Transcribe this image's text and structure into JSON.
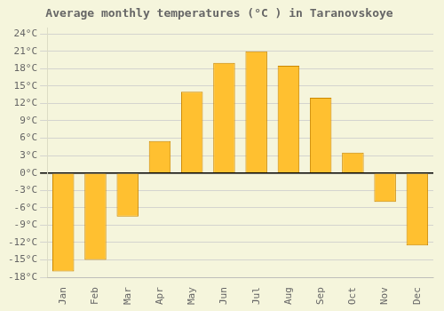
{
  "chart_data": {
    "type": "bar",
    "title": "Average monthly temperatures (°C ) in Taranovskoye",
    "categories": [
      "Jan",
      "Feb",
      "Mar",
      "Apr",
      "May",
      "Jun",
      "Jul",
      "Aug",
      "Sep",
      "Oct",
      "Nov",
      "Dec"
    ],
    "values": [
      -17,
      -15,
      -7.5,
      5.5,
      14,
      19,
      21,
      18.5,
      13,
      3.5,
      -5,
      -12.5
    ],
    "color": "#FFC030",
    "ylim": [
      -18,
      25
    ],
    "yticks": [
      {
        "value": -18,
        "label": "-18°C"
      },
      {
        "value": -15,
        "label": "-15°C"
      },
      {
        "value": -12,
        "label": "-12°C"
      },
      {
        "value": -9,
        "label": "-9°C"
      },
      {
        "value": -6,
        "label": "-6°C"
      },
      {
        "value": -3,
        "label": "-3°C"
      },
      {
        "value": 0,
        "label": "0°C"
      },
      {
        "value": 3,
        "label": "3°C"
      },
      {
        "value": 6,
        "label": "6°C"
      },
      {
        "value": 9,
        "label": "9°C"
      },
      {
        "value": 12,
        "label": "12°C"
      },
      {
        "value": 15,
        "label": "15°C"
      },
      {
        "value": 18,
        "label": "18°C"
      },
      {
        "value": 21,
        "label": "21°C"
      },
      {
        "value": 24,
        "label": "24°C"
      }
    ],
    "grid": true
  }
}
